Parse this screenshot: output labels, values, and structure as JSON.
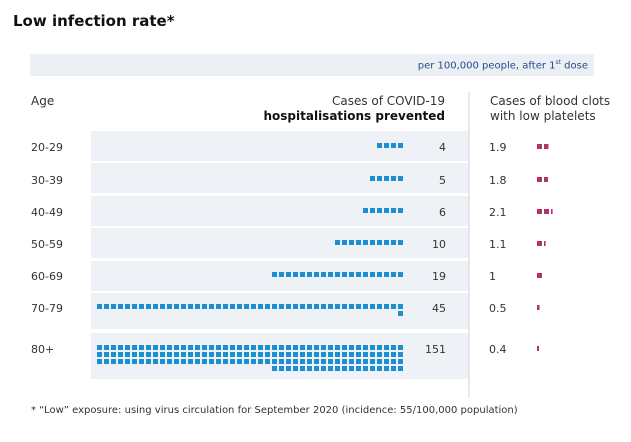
{
  "title": "Low infection rate*",
  "note": {
    "prefix": "per 100,000 people, after 1",
    "sup": "st",
    "suffix": " dose"
  },
  "headers": {
    "age": "Age",
    "cases_line1": "Cases of COVID-19",
    "cases_line2": "hospitalisations prevented",
    "clots_line1": "Cases of blood clots",
    "clots_line2": "with low platelets"
  },
  "colors": {
    "hospital": "#1a8fd1",
    "clots": "#b0336e",
    "row_band": "#eef1f5",
    "divider": "#cfd4da"
  },
  "chart_data": {
    "type": "bar",
    "categories": [
      "20-29",
      "30-39",
      "40-49",
      "50-59",
      "60-69",
      "70-79",
      "80+"
    ],
    "series": [
      {
        "name": "Cases of COVID-19 hospitalisations prevented",
        "values": [
          4,
          5,
          6,
          10,
          19,
          45,
          151
        ],
        "labels": [
          "4",
          "5",
          "6",
          "10",
          "19",
          "45",
          "151"
        ]
      },
      {
        "name": "Cases of blood clots with low platelets",
        "values": [
          1.9,
          1.8,
          2.1,
          1.1,
          1,
          0.5,
          0.4
        ],
        "labels": [
          "1.9",
          "1.8",
          "2.1",
          "1.1",
          "1",
          "0.5",
          "0.4"
        ]
      }
    ]
  },
  "footnote": "* “Low” exposure: using virus circulation for September 2020 (incidence: 55/100,000 population)"
}
